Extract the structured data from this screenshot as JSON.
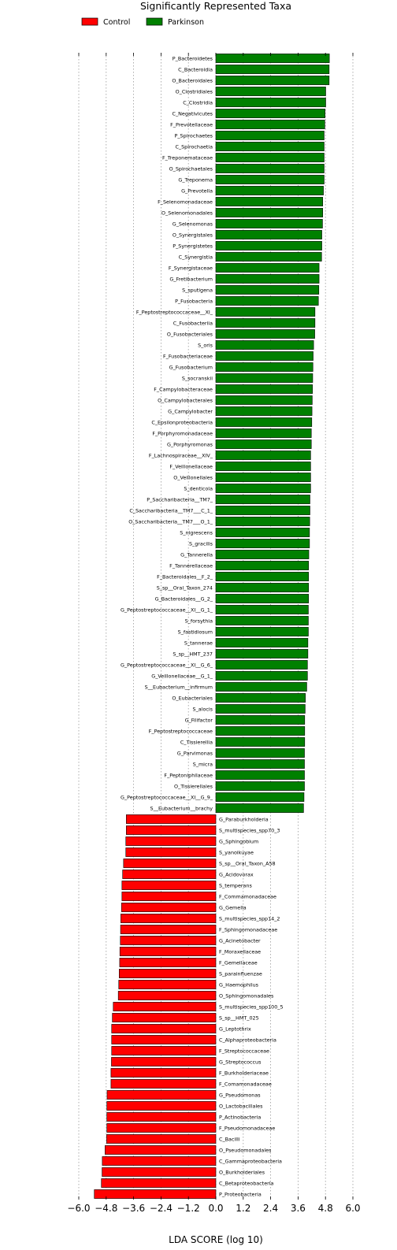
{
  "chart_data": {
    "type": "bar",
    "orientation": "horizontal",
    "title": "Significantly Represented Taxa",
    "xlabel": "LDA SCORE (log 10)",
    "ylabel": "",
    "xlim": [
      -6.0,
      6.0
    ],
    "xticks": [
      -6.0,
      -4.8,
      -3.6,
      -2.4,
      -1.2,
      0.0,
      1.2,
      2.4,
      3.6,
      4.8,
      6.0
    ],
    "xtick_labels": [
      "−6.0",
      "−4.8",
      "−3.6",
      "−2.4",
      "−1.2",
      "0.0",
      "1.2",
      "2.4",
      "3.6",
      "4.8",
      "6.0"
    ],
    "grid": "vertical dotted",
    "legend_position": "top-left",
    "legend": [
      {
        "name": "Control",
        "color": "#ff0000"
      },
      {
        "name": "Parkinson",
        "color": "#008000"
      }
    ],
    "series": [
      {
        "name": "Parkinson",
        "color": "#008000",
        "categories": [
          "P_Bacteroidetes",
          "C_Bacteroidia",
          "O_Bacteroidales",
          "O_Clostridiales",
          "C_Clostridia",
          "C_Negativicutes",
          "F_Prevotellaceae",
          "P_Spirochaetes",
          "C_Spirochaetia",
          "F_Treponemataceae",
          "O_Spirochaetales",
          "G_Treponema",
          "G_Prevotella",
          "F_Selenomonadaceae",
          "O_Selenomonadales",
          "G_Selenomonas",
          "O_Synergistales",
          "P_Synergistetes",
          "C_Synergistia",
          "F_Synergistaceae",
          "G_Fretibacterium",
          "S_sputigena",
          "P_Fusobacteria",
          "F_Peptostreptococcaceae__XI_",
          "C_Fusobacteriia",
          "O_Fusobacteriales",
          "S_oris",
          "F_Fusobacteriaceae",
          "G_Fusobacterium",
          "S_socranskii",
          "F_Campylobacteraceae",
          "O_Campylobacterales",
          "G_Campylobacter",
          "C_Epsilonproteobacteria",
          "F_Porphyromonadaceae",
          "G_Porphyromonas",
          "F_Lachnospiraceae__XIV_",
          "F_Veillonellaceae",
          "O_Veillonellales",
          "S_denticola",
          "P_Saccharibacteria__TM7_",
          "C_Saccharibacteria__TM7___C_1_",
          "O_Saccharibacteria__TM7___O_1_",
          "S_nigrescens",
          "S_gracilis",
          "G_Tannerella",
          "F_Tannerellaceae",
          "F_Bacteroidales__F_2_",
          "S_sp__Oral_Taxon_274",
          "G_Bacteroidales__G_2_",
          "G_Peptostreptococcaceae__XI__G_1_",
          "S_forsythia",
          "S_fastidiosum",
          "S_tannerae",
          "S_sp__HMT_237",
          "G_Peptostreptococcaceae__XI__G_6_",
          "G_Veillonellaceae__G_1_",
          "S__Eubacterium__infirmum",
          "O_Eubacteriales",
          "S_alocis",
          "G_Filifactor",
          "F_Peptostreptococcaceae",
          "C_Tissierellia",
          "G_Parvimonas",
          "S_micra",
          "F_Peptoniphilaceae",
          "O_Tissierellales",
          "G_Peptostreptococcaceae__XI__G_9_",
          "S__Eubacterium__brachy"
        ],
        "values": [
          4.97,
          4.96,
          4.96,
          4.81,
          4.81,
          4.78,
          4.77,
          4.74,
          4.74,
          4.74,
          4.74,
          4.74,
          4.71,
          4.68,
          4.68,
          4.67,
          4.64,
          4.64,
          4.63,
          4.52,
          4.52,
          4.51,
          4.49,
          4.34,
          4.34,
          4.33,
          4.28,
          4.26,
          4.25,
          4.24,
          4.23,
          4.22,
          4.21,
          4.2,
          4.18,
          4.18,
          4.15,
          4.15,
          4.15,
          4.15,
          4.12,
          4.12,
          4.11,
          4.1,
          4.1,
          4.07,
          4.06,
          4.06,
          4.06,
          4.06,
          4.05,
          4.05,
          4.05,
          4.03,
          4.03,
          4.01,
          4.01,
          3.98,
          3.92,
          3.91,
          3.89,
          3.89,
          3.89,
          3.88,
          3.88,
          3.88,
          3.88,
          3.86,
          3.84
        ]
      },
      {
        "name": "Control",
        "color": "#ff0000",
        "categories": [
          "G_Paraburkholderia",
          "S_multispecies_spp70_3",
          "G_Sphingobium",
          "S_yanoikuyae",
          "S_sp__Oral_Taxon_A58",
          "G_Acidovorax",
          "S_temperans",
          "F_Commamonadaceae",
          "G_Gemella",
          "S_multispecies_spp14_2",
          "F_Sphingomonadaceae",
          "G_Acinetobacter",
          "F_Moraxellaceae",
          "F_Gemellaceae",
          "S_parainfluenzae",
          "G_Haemophilus",
          "O_Sphingomonadales",
          "S_multispecies_spp100_5",
          "S_sp__HMT_025",
          "G_Leptothrix",
          "C_Alphaproteobacteria",
          "F_Streptococcaceae",
          "G_Streptococcus",
          "F_Burkholderiaceae",
          "F_Comamonadaceae",
          "G_Pseudomonas",
          "O_Lactobacillales",
          "P_Actinobacteria",
          "F_Pseudomonadaceae",
          "C_Bacilli",
          "O_Pseudomonadales",
          "C_Gammaproteobacteria",
          "O_Burkholderiales",
          "C_Betaproteobacteria",
          "P_Proteobacteria"
        ],
        "values": [
          -3.92,
          -3.92,
          -3.94,
          -3.94,
          -4.04,
          -4.08,
          -4.11,
          -4.11,
          -4.13,
          -4.16,
          -4.17,
          -4.18,
          -4.2,
          -4.21,
          -4.23,
          -4.25,
          -4.27,
          -4.49,
          -4.53,
          -4.56,
          -4.56,
          -4.56,
          -4.57,
          -4.59,
          -4.59,
          -4.76,
          -4.77,
          -4.77,
          -4.77,
          -4.78,
          -4.85,
          -4.97,
          -4.98,
          -5.01,
          -5.32
        ]
      }
    ]
  }
}
